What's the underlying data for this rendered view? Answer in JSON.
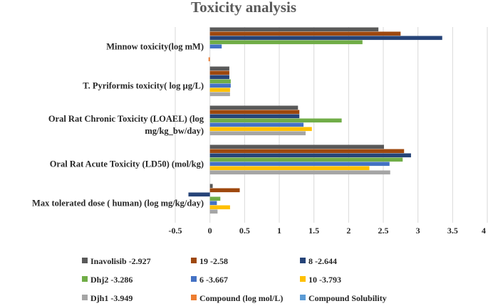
{
  "chart_data": {
    "type": "bar",
    "orientation": "horizontal",
    "title": "Toxicity analysis",
    "xlabel": "",
    "ylabel": "",
    "xlim": [
      -0.5,
      4
    ],
    "xticks": [
      -0.5,
      0,
      0.5,
      1,
      1.5,
      2,
      2.5,
      3,
      3.5,
      4
    ],
    "tick_labels": [
      "-0.5",
      "0",
      "0.5",
      "1",
      "1.5",
      "2",
      "2.5",
      "3",
      "3.5",
      "4"
    ],
    "grid": "vertical",
    "legend_position": "bottom",
    "categories": [
      {
        "label": [
          "Minnow toxicity(log mM)"
        ]
      },
      {
        "label": [
          "T. Pyriformis toxicity( log µg/L)"
        ]
      },
      {
        "label": [
          "Oral Rat Chronic Toxicity (LOAEL) (log",
          "mg/kg_bw/day)"
        ]
      },
      {
        "label": [
          "Oral Rat Acute Toxicity (LD50) (mol/kg)"
        ]
      },
      {
        "label": [
          "Max tolerated dose ( human) (log mg/kg/day)"
        ]
      }
    ],
    "series": [
      {
        "name": "Inavolisib -2.927",
        "color": "#595959",
        "values": [
          2.43,
          0.28,
          1.27,
          2.51,
          0.04
        ]
      },
      {
        "name": "19 -2.58",
        "color": "#9E480E",
        "values": [
          2.75,
          0.28,
          1.29,
          2.8,
          0.43
        ]
      },
      {
        "name": "8 -2.644",
        "color": "#264478",
        "values": [
          3.35,
          0.28,
          1.29,
          2.9,
          -0.31
        ]
      },
      {
        "name": "Dhj2 -3.286",
        "color": "#70AD47",
        "values": [
          2.2,
          0.3,
          1.9,
          2.78,
          0.15
        ]
      },
      {
        "name": "6 -3.667",
        "color": "#4472C4",
        "values": [
          0.17,
          0.3,
          1.35,
          2.59,
          0.1
        ]
      },
      {
        "name": "10 -3.793",
        "color": "#FFC000",
        "values": [
          0,
          0.29,
          1.47,
          2.3,
          0.29
        ]
      },
      {
        "name": "Djh1 -3.949",
        "color": "#A5A5A5",
        "values": [
          0,
          0.29,
          1.38,
          2.6,
          0.11
        ]
      },
      {
        "name": "Compound (log mol/L)",
        "color": "#ED7D31",
        "values": [
          -0.02,
          0,
          0,
          0,
          0
        ]
      },
      {
        "name": "Compound Solubility",
        "color": "#5B9BD5",
        "values": [
          0,
          0,
          0,
          0,
          0
        ]
      }
    ]
  }
}
